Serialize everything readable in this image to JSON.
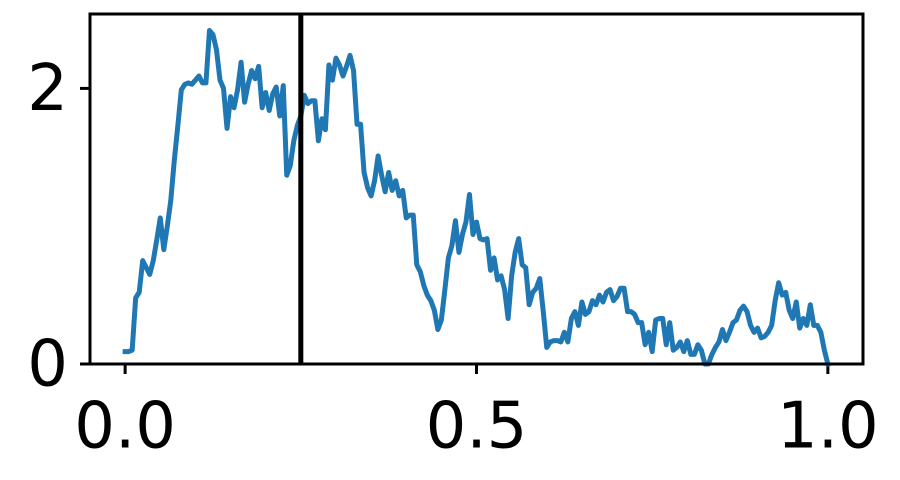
{
  "chart_data": {
    "type": "line",
    "color": "#1f77b4",
    "x": [
      0,
      0.005,
      0.01,
      0.015,
      0.02,
      0.025,
      0.03,
      0.035,
      0.04,
      0.045,
      0.05,
      0.055,
      0.06,
      0.065,
      0.07,
      0.075,
      0.08,
      0.085,
      0.09,
      0.095,
      0.1,
      0.105,
      0.11,
      0.115,
      0.12,
      0.125,
      0.13,
      0.135,
      0.14,
      0.145,
      0.15,
      0.155,
      0.16,
      0.165,
      0.17,
      0.175,
      0.18,
      0.185,
      0.19,
      0.195,
      0.2,
      0.205,
      0.21,
      0.215,
      0.22,
      0.225,
      0.23,
      0.235,
      0.24,
      0.245,
      0.25,
      0.255,
      0.26,
      0.265,
      0.27,
      0.275,
      0.28,
      0.285,
      0.29,
      0.295,
      0.3,
      0.305,
      0.31,
      0.315,
      0.32,
      0.325,
      0.33,
      0.335,
      0.34,
      0.345,
      0.35,
      0.355,
      0.36,
      0.365,
      0.37,
      0.375,
      0.38,
      0.385,
      0.39,
      0.395,
      0.4,
      0.405,
      0.41,
      0.415,
      0.42,
      0.425,
      0.43,
      0.435,
      0.44,
      0.445,
      0.45,
      0.455,
      0.46,
      0.465,
      0.47,
      0.475,
      0.48,
      0.485,
      0.49,
      0.495,
      0.5,
      0.505,
      0.51,
      0.515,
      0.52,
      0.525,
      0.53,
      0.535,
      0.54,
      0.545,
      0.55,
      0.555,
      0.56,
      0.565,
      0.57,
      0.575,
      0.58,
      0.585,
      0.59,
      0.595,
      0.6,
      0.605,
      0.61,
      0.615,
      0.62,
      0.625,
      0.63,
      0.635,
      0.64,
      0.645,
      0.65,
      0.655,
      0.66,
      0.665,
      0.67,
      0.675,
      0.68,
      0.685,
      0.69,
      0.695,
      0.7,
      0.705,
      0.71,
      0.715,
      0.72,
      0.725,
      0.73,
      0.735,
      0.74,
      0.745,
      0.75,
      0.755,
      0.76,
      0.765,
      0.77,
      0.775,
      0.78,
      0.785,
      0.79,
      0.795,
      0.8,
      0.805,
      0.81,
      0.815,
      0.82,
      0.825,
      0.83,
      0.835,
      0.84,
      0.845,
      0.85,
      0.855,
      0.86,
      0.865,
      0.87,
      0.875,
      0.88,
      0.885,
      0.89,
      0.895,
      0.9,
      0.905,
      0.91,
      0.915,
      0.92,
      0.925,
      0.93,
      0.935,
      0.94,
      0.945,
      0.95,
      0.955,
      0.96,
      0.965,
      0.97,
      0.975,
      0.98,
      0.985,
      0.99,
      0.995,
      1
    ],
    "values": [
      0.09,
      0.09,
      0.1,
      0.48,
      0.52,
      0.75,
      0.7,
      0.65,
      0.75,
      0.9,
      1.06,
      0.83,
      1.0,
      1.19,
      1.48,
      1.73,
      1.99,
      2.03,
      2.04,
      2.03,
      2.06,
      2.09,
      2.04,
      2.04,
      2.42,
      2.39,
      2.28,
      2.06,
      2.0,
      1.71,
      1.94,
      1.86,
      1.99,
      2.19,
      1.9,
      2.03,
      2.13,
      2.07,
      2.16,
      1.86,
      1.97,
      1.84,
      1.96,
      2.01,
      1.8,
      2.02,
      1.37,
      1.44,
      1.62,
      1.73,
      1.8,
      1.95,
      1.89,
      1.91,
      1.91,
      1.62,
      1.78,
      1.7,
      2.17,
      2.06,
      2.22,
      2.17,
      2.09,
      2.16,
      2.24,
      2.13,
      1.74,
      1.74,
      1.39,
      1.28,
      1.22,
      1.33,
      1.51,
      1.37,
      1.25,
      1.39,
      1.26,
      1.33,
      1.22,
      1.26,
      1.06,
      1.08,
      1.08,
      0.72,
      0.67,
      0.57,
      0.5,
      0.46,
      0.39,
      0.25,
      0.32,
      0.54,
      0.77,
      0.86,
      1.04,
      0.81,
      0.94,
      1.03,
      1.23,
      0.94,
      1.03,
      0.91,
      0.9,
      0.91,
      0.68,
      0.77,
      0.61,
      0.64,
      0.54,
      0.33,
      0.64,
      0.81,
      0.91,
      0.72,
      0.7,
      0.43,
      0.52,
      0.55,
      0.62,
      0.38,
      0.12,
      0.16,
      0.17,
      0.17,
      0.16,
      0.23,
      0.16,
      0.33,
      0.38,
      0.28,
      0.45,
      0.36,
      0.38,
      0.46,
      0.43,
      0.5,
      0.45,
      0.52,
      0.54,
      0.46,
      0.49,
      0.55,
      0.55,
      0.38,
      0.38,
      0.36,
      0.3,
      0.3,
      0.14,
      0.23,
      0.09,
      0.32,
      0.33,
      0.33,
      0.14,
      0.3,
      0.1,
      0.12,
      0.16,
      0.09,
      0.17,
      0.07,
      0.07,
      0.14,
      0.1,
      0,
      0,
      0.07,
      0.12,
      0.16,
      0.25,
      0.17,
      0.23,
      0.3,
      0.32,
      0.39,
      0.42,
      0.38,
      0.28,
      0.23,
      0.26,
      0.19,
      0.2,
      0.23,
      0.28,
      0.46,
      0.59,
      0.5,
      0.52,
      0.39,
      0.33,
      0.45,
      0.26,
      0.33,
      0.28,
      0.43,
      0.28,
      0.28,
      0.23,
      0.1,
      0
    ],
    "vline": 0.25,
    "vline_color": "#000000",
    "xlim": [
      -0.05,
      1.05
    ],
    "xticks": [
      {
        "value": 0,
        "label": "0.0"
      },
      {
        "value": 0.5,
        "label": "0.5"
      },
      {
        "value": 1,
        "label": "1.0"
      }
    ],
    "ylim": [
      0,
      2.54
    ],
    "yticks": [
      0,
      2
    ],
    "grid": false
  }
}
